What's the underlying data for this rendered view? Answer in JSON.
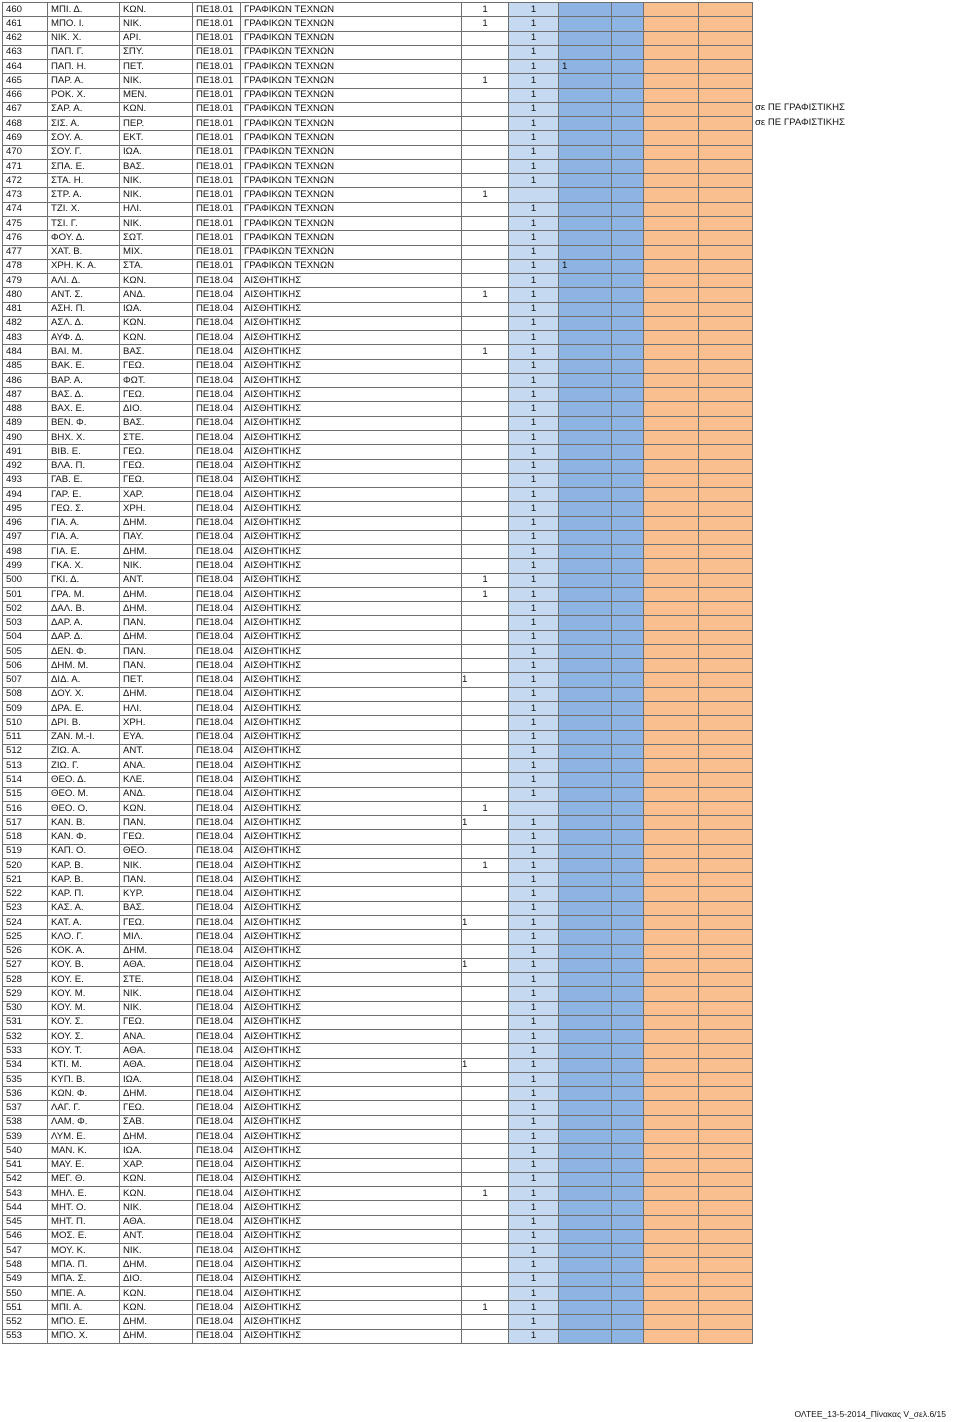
{
  "rows": [
    {
      "no": "460",
      "surname": "ΜΠΙ. Δ.",
      "father": "ΚΩΝ.",
      "code": "ΠΕ18.01",
      "spec": "ΓΡΑΦΙΚΩΝ ΤΕΧΝΩΝ",
      "a": "1",
      "b": "1"
    },
    {
      "no": "461",
      "surname": "ΜΠΟ. Ι.",
      "father": "ΝΙΚ.",
      "code": "ΠΕ18.01",
      "spec": "ΓΡΑΦΙΚΩΝ ΤΕΧΝΩΝ",
      "a": "1",
      "b": "1"
    },
    {
      "no": "462",
      "surname": "ΝΙΚ. Χ.",
      "father": "ΑΡΙ.",
      "code": "ΠΕ18.01",
      "spec": "ΓΡΑΦΙΚΩΝ ΤΕΧΝΩΝ",
      "a": "",
      "b": "1"
    },
    {
      "no": "463",
      "surname": "ΠΑΠ. Γ.",
      "father": "ΣΠΥ.",
      "code": "ΠΕ18.01",
      "spec": "ΓΡΑΦΙΚΩΝ ΤΕΧΝΩΝ",
      "a": "",
      "b": "1"
    },
    {
      "no": "464",
      "surname": "ΠΑΠ. Η.",
      "father": "ΠΕΤ.",
      "code": "ΠΕ18.01",
      "spec": "ΓΡΑΦΙΚΩΝ ΤΕΧΝΩΝ",
      "a": "",
      "b": "1",
      "c": "1"
    },
    {
      "no": "465",
      "surname": "ΠΑΡ. Α.",
      "father": "ΝΙΚ.",
      "code": "ΠΕ18.01",
      "spec": "ΓΡΑΦΙΚΩΝ ΤΕΧΝΩΝ",
      "a": "1",
      "b": "1"
    },
    {
      "no": "466",
      "surname": "ΡΟΚ. Χ.",
      "father": "ΜΕΝ.",
      "code": "ΠΕ18.01",
      "spec": "ΓΡΑΦΙΚΩΝ ΤΕΧΝΩΝ",
      "a": "",
      "b": "1"
    },
    {
      "no": "467",
      "surname": "ΣΑΡ. Α.",
      "father": "ΚΩΝ.",
      "code": "ΠΕ18.01",
      "spec": "ΓΡΑΦΙΚΩΝ ΤΕΧΝΩΝ",
      "a": "",
      "b": "1",
      "remark": "σε ΠΕ ΓΡΑΦΙΣΤΙΚΗΣ"
    },
    {
      "no": "468",
      "surname": "ΣΙΣ. Α.",
      "father": "ΠΕΡ.",
      "code": "ΠΕ18.01",
      "spec": "ΓΡΑΦΙΚΩΝ ΤΕΧΝΩΝ",
      "a": "",
      "b": "1",
      "remark": "σε ΠΕ ΓΡΑΦΙΣΤΙΚΗΣ"
    },
    {
      "no": "469",
      "surname": "ΣΟΥ. Α.",
      "father": "ΕΚΤ.",
      "code": "ΠΕ18.01",
      "spec": "ΓΡΑΦΙΚΩΝ ΤΕΧΝΩΝ",
      "a": "",
      "b": "1"
    },
    {
      "no": "470",
      "surname": "ΣΟΥ. Γ.",
      "father": "ΙΩΑ.",
      "code": "ΠΕ18.01",
      "spec": "ΓΡΑΦΙΚΩΝ ΤΕΧΝΩΝ",
      "a": "",
      "b": "1"
    },
    {
      "no": "471",
      "surname": "ΣΠΑ. Ε.",
      "father": "ΒΑΣ.",
      "code": "ΠΕ18.01",
      "spec": "ΓΡΑΦΙΚΩΝ ΤΕΧΝΩΝ",
      "a": "",
      "b": "1"
    },
    {
      "no": "472",
      "surname": "ΣΤΑ. Η.",
      "father": "ΝΙΚ.",
      "code": "ΠΕ18.01",
      "spec": "ΓΡΑΦΙΚΩΝ ΤΕΧΝΩΝ",
      "a": "",
      "b": "1"
    },
    {
      "no": "473",
      "surname": "ΣΤΡ. Α.",
      "father": "ΝΙΚ.",
      "code": "ΠΕ18.01",
      "spec": "ΓΡΑΦΙΚΩΝ ΤΕΧΝΩΝ",
      "a": "1",
      "b": ""
    },
    {
      "no": "474",
      "surname": "ΤΖΙ. Χ.",
      "father": "ΗΛΙ.",
      "code": "ΠΕ18.01",
      "spec": "ΓΡΑΦΙΚΩΝ ΤΕΧΝΩΝ",
      "a": "",
      "b": "1"
    },
    {
      "no": "475",
      "surname": "ΤΣΙ. Γ.",
      "father": "ΝΙΚ.",
      "code": "ΠΕ18.01",
      "spec": "ΓΡΑΦΙΚΩΝ ΤΕΧΝΩΝ",
      "a": "",
      "b": "1"
    },
    {
      "no": "476",
      "surname": "ΦΟΥ. Δ.",
      "father": "ΣΩΤ.",
      "code": "ΠΕ18.01",
      "spec": "ΓΡΑΦΙΚΩΝ ΤΕΧΝΩΝ",
      "a": "",
      "b": "1"
    },
    {
      "no": "477",
      "surname": "ΧΑΤ. Β.",
      "father": "ΜΙΧ.",
      "code": "ΠΕ18.01",
      "spec": "ΓΡΑΦΙΚΩΝ ΤΕΧΝΩΝ",
      "a": "",
      "b": "1"
    },
    {
      "no": "478",
      "surname": "ΧΡΗ. Κ. Α.",
      "father": "ΣΤΑ.",
      "code": "ΠΕ18.01",
      "spec": "ΓΡΑΦΙΚΩΝ ΤΕΧΝΩΝ",
      "a": "",
      "b": "1",
      "c": "1"
    },
    {
      "no": "479",
      "surname": "ΑΛΙ. Δ.",
      "father": "ΚΩΝ.",
      "code": "ΠΕ18.04",
      "spec": "ΑΙΣΘΗΤΙΚΗΣ",
      "a": "",
      "b": "1"
    },
    {
      "no": "480",
      "surname": "ΑΝΤ. Σ.",
      "father": "ΑΝΔ.",
      "code": "ΠΕ18.04",
      "spec": "ΑΙΣΘΗΤΙΚΗΣ",
      "a": "1",
      "b": "1"
    },
    {
      "no": "481",
      "surname": "ΑΣΗ. Π.",
      "father": "ΙΩΑ.",
      "code": "ΠΕ18.04",
      "spec": "ΑΙΣΘΗΤΙΚΗΣ",
      "a": "",
      "b": "1"
    },
    {
      "no": "482",
      "surname": "ΑΣΛ. Δ.",
      "father": "ΚΩΝ.",
      "code": "ΠΕ18.04",
      "spec": "ΑΙΣΘΗΤΙΚΗΣ",
      "a": "",
      "b": "1"
    },
    {
      "no": "483",
      "surname": "ΑΥΦ. Δ.",
      "father": "ΚΩΝ.",
      "code": "ΠΕ18.04",
      "spec": "ΑΙΣΘΗΤΙΚΗΣ",
      "a": "",
      "b": "1"
    },
    {
      "no": "484",
      "surname": "ΒΑΙ. Μ.",
      "father": "ΒΑΣ.",
      "code": "ΠΕ18.04",
      "spec": "ΑΙΣΘΗΤΙΚΗΣ",
      "a": "1",
      "b": "1"
    },
    {
      "no": "485",
      "surname": "ΒΑΚ. Ε.",
      "father": "ΓΕΩ.",
      "code": "ΠΕ18.04",
      "spec": "ΑΙΣΘΗΤΙΚΗΣ",
      "a": "",
      "b": "1"
    },
    {
      "no": "486",
      "surname": "ΒΑΡ. Α.",
      "father": "ΦΩΤ.",
      "code": "ΠΕ18.04",
      "spec": "ΑΙΣΘΗΤΙΚΗΣ",
      "a": "",
      "b": "1"
    },
    {
      "no": "487",
      "surname": "ΒΑΣ. Δ.",
      "father": "ΓΕΩ.",
      "code": "ΠΕ18.04",
      "spec": "ΑΙΣΘΗΤΙΚΗΣ",
      "a": "",
      "b": "1"
    },
    {
      "no": "488",
      "surname": "ΒΑΧ. Ε.",
      "father": "ΔΙΟ.",
      "code": "ΠΕ18.04",
      "spec": "ΑΙΣΘΗΤΙΚΗΣ",
      "a": "",
      "b": "1"
    },
    {
      "no": "489",
      "surname": "ΒΕΝ. Φ.",
      "father": "ΒΑΣ.",
      "code": "ΠΕ18.04",
      "spec": "ΑΙΣΘΗΤΙΚΗΣ",
      "a": "",
      "b": "1"
    },
    {
      "no": "490",
      "surname": "ΒΗΧ. Χ.",
      "father": "ΣΤΕ.",
      "code": "ΠΕ18.04",
      "spec": "ΑΙΣΘΗΤΙΚΗΣ",
      "a": "",
      "b": "1"
    },
    {
      "no": "491",
      "surname": "ΒΙΒ. Ε.",
      "father": "ΓΕΩ.",
      "code": "ΠΕ18.04",
      "spec": "ΑΙΣΘΗΤΙΚΗΣ",
      "a": "",
      "b": "1"
    },
    {
      "no": "492",
      "surname": "ΒΛΑ. Π.",
      "father": "ΓΕΩ.",
      "code": "ΠΕ18.04",
      "spec": "ΑΙΣΘΗΤΙΚΗΣ",
      "a": "",
      "b": "1"
    },
    {
      "no": "493",
      "surname": "ΓΑΒ. Ε.",
      "father": "ΓΕΩ.",
      "code": "ΠΕ18.04",
      "spec": "ΑΙΣΘΗΤΙΚΗΣ",
      "a": "",
      "b": "1"
    },
    {
      "no": "494",
      "surname": "ΓΑΡ. Ε.",
      "father": "ΧΑΡ.",
      "code": "ΠΕ18.04",
      "spec": "ΑΙΣΘΗΤΙΚΗΣ",
      "a": "",
      "b": "1"
    },
    {
      "no": "495",
      "surname": "ΓΕΩ. Σ.",
      "father": "ΧΡΗ.",
      "code": "ΠΕ18.04",
      "spec": "ΑΙΣΘΗΤΙΚΗΣ",
      "a": "",
      "b": "1"
    },
    {
      "no": "496",
      "surname": "ΓΙΑ. Α.",
      "father": "ΔΗΜ.",
      "code": "ΠΕ18.04",
      "spec": "ΑΙΣΘΗΤΙΚΗΣ",
      "a": "",
      "b": "1"
    },
    {
      "no": "497",
      "surname": "ΓΙΑ. Α.",
      "father": "ΠΑΥ.",
      "code": "ΠΕ18.04",
      "spec": "ΑΙΣΘΗΤΙΚΗΣ",
      "a": "",
      "b": "1"
    },
    {
      "no": "498",
      "surname": "ΓΙΑ. Ε.",
      "father": "ΔΗΜ.",
      "code": "ΠΕ18.04",
      "spec": "ΑΙΣΘΗΤΙΚΗΣ",
      "a": "",
      "b": "1"
    },
    {
      "no": "499",
      "surname": "ΓΚΑ. Χ.",
      "father": "ΝΙΚ.",
      "code": "ΠΕ18.04",
      "spec": "ΑΙΣΘΗΤΙΚΗΣ",
      "a": "",
      "b": "1"
    },
    {
      "no": "500",
      "surname": "ΓΚΙ. Δ.",
      "father": "ΑΝΤ.",
      "code": "ΠΕ18.04",
      "spec": "ΑΙΣΘΗΤΙΚΗΣ",
      "a": "1",
      "b": "1"
    },
    {
      "no": "501",
      "surname": "ΓΡΑ. Μ.",
      "father": "ΔΗΜ.",
      "code": "ΠΕ18.04",
      "spec": "ΑΙΣΘΗΤΙΚΗΣ",
      "a": "1",
      "b": "1"
    },
    {
      "no": "502",
      "surname": "ΔΑΛ. Β.",
      "father": "ΔΗΜ.",
      "code": "ΠΕ18.04",
      "spec": "ΑΙΣΘΗΤΙΚΗΣ",
      "a": "",
      "b": "1"
    },
    {
      "no": "503",
      "surname": "ΔΑΡ. Α.",
      "father": "ΠΑΝ.",
      "code": "ΠΕ18.04",
      "spec": "ΑΙΣΘΗΤΙΚΗΣ",
      "a": "",
      "b": "1"
    },
    {
      "no": "504",
      "surname": "ΔΑΡ. Δ.",
      "father": "ΔΗΜ.",
      "code": "ΠΕ18.04",
      "spec": "ΑΙΣΘΗΤΙΚΗΣ",
      "a": "",
      "b": "1"
    },
    {
      "no": "505",
      "surname": "ΔΕΝ. Φ.",
      "father": "ΠΑΝ.",
      "code": "ΠΕ18.04",
      "spec": "ΑΙΣΘΗΤΙΚΗΣ",
      "a": "",
      "b": "1"
    },
    {
      "no": "506",
      "surname": "ΔΗΜ. Μ.",
      "father": "ΠΑΝ.",
      "code": "ΠΕ18.04",
      "spec": "ΑΙΣΘΗΤΙΚΗΣ",
      "a": "",
      "b": "1"
    },
    {
      "no": "507",
      "surname": "ΔΙΔ. Α.",
      "father": "ΠΕΤ.",
      "code": "ΠΕ18.04",
      "spec": "ΑΙΣΘΗΤΙΚΗΣ",
      "a": "1",
      "b": "1",
      "a_shift": true
    },
    {
      "no": "508",
      "surname": "ΔΟΥ. Χ.",
      "father": "ΔΗΜ.",
      "code": "ΠΕ18.04",
      "spec": "ΑΙΣΘΗΤΙΚΗΣ",
      "a": "",
      "b": "1"
    },
    {
      "no": "509",
      "surname": "ΔΡΑ. Ε.",
      "father": "ΗΛΙ.",
      "code": "ΠΕ18.04",
      "spec": "ΑΙΣΘΗΤΙΚΗΣ",
      "a": "",
      "b": "1"
    },
    {
      "no": "510",
      "surname": "ΔΡΙ. Β.",
      "father": "ΧΡΗ.",
      "code": "ΠΕ18.04",
      "spec": "ΑΙΣΘΗΤΙΚΗΣ",
      "a": "",
      "b": "1"
    },
    {
      "no": "511",
      "surname": "ΖΑΝ. Μ.-Ι.",
      "father": "ΕΥΑ.",
      "code": "ΠΕ18.04",
      "spec": "ΑΙΣΘΗΤΙΚΗΣ",
      "a": "",
      "b": "1"
    },
    {
      "no": "512",
      "surname": "ΖΙΩ. Α.",
      "father": "ΑΝΤ.",
      "code": "ΠΕ18.04",
      "spec": "ΑΙΣΘΗΤΙΚΗΣ",
      "a": "",
      "b": "1"
    },
    {
      "no": "513",
      "surname": "ΖΙΩ. Γ.",
      "father": "ΑΝΑ.",
      "code": "ΠΕ18.04",
      "spec": "ΑΙΣΘΗΤΙΚΗΣ",
      "a": "",
      "b": "1"
    },
    {
      "no": "514",
      "surname": "ΘΕΟ. Δ.",
      "father": "ΚΛΕ.",
      "code": "ΠΕ18.04",
      "spec": "ΑΙΣΘΗΤΙΚΗΣ",
      "a": "",
      "b": "1"
    },
    {
      "no": "515",
      "surname": "ΘΕΟ. Μ.",
      "father": "ΑΝΔ.",
      "code": "ΠΕ18.04",
      "spec": "ΑΙΣΘΗΤΙΚΗΣ",
      "a": "",
      "b": "1"
    },
    {
      "no": "516",
      "surname": "ΘΕΟ. Ο.",
      "father": "ΚΩΝ.",
      "code": "ΠΕ18.04",
      "spec": "ΑΙΣΘΗΤΙΚΗΣ",
      "a": "1",
      "b": ""
    },
    {
      "no": "517",
      "surname": "ΚΑΝ. Β.",
      "father": "ΠΑΝ.",
      "code": "ΠΕ18.04",
      "spec": "ΑΙΣΘΗΤΙΚΗΣ",
      "a": "1",
      "b": "1",
      "a_shift": true
    },
    {
      "no": "518",
      "surname": "ΚΑΝ. Φ.",
      "father": "ΓΕΩ.",
      "code": "ΠΕ18.04",
      "spec": "ΑΙΣΘΗΤΙΚΗΣ",
      "a": "",
      "b": "1"
    },
    {
      "no": "519",
      "surname": "ΚΑΠ. Ο.",
      "father": "ΘΕΟ.",
      "code": "ΠΕ18.04",
      "spec": "ΑΙΣΘΗΤΙΚΗΣ",
      "a": "",
      "b": "1"
    },
    {
      "no": "520",
      "surname": "ΚΑΡ. Β.",
      "father": "ΝΙΚ.",
      "code": "ΠΕ18.04",
      "spec": "ΑΙΣΘΗΤΙΚΗΣ",
      "a": "1",
      "b": "1"
    },
    {
      "no": "521",
      "surname": "ΚΑΡ. Β.",
      "father": "ΠΑΝ.",
      "code": "ΠΕ18.04",
      "spec": "ΑΙΣΘΗΤΙΚΗΣ",
      "a": "",
      "b": "1"
    },
    {
      "no": "522",
      "surname": "ΚΑΡ. Π.",
      "father": "ΚΥΡ.",
      "code": "ΠΕ18.04",
      "spec": "ΑΙΣΘΗΤΙΚΗΣ",
      "a": "",
      "b": "1"
    },
    {
      "no": "523",
      "surname": "ΚΑΣ. Α.",
      "father": "ΒΑΣ.",
      "code": "ΠΕ18.04",
      "spec": "ΑΙΣΘΗΤΙΚΗΣ",
      "a": "",
      "b": "1"
    },
    {
      "no": "524",
      "surname": "ΚΑΤ. Α.",
      "father": "ΓΕΩ.",
      "code": "ΠΕ18.04",
      "spec": "ΑΙΣΘΗΤΙΚΗΣ",
      "a": "1",
      "b": "1",
      "a_shift": true
    },
    {
      "no": "525",
      "surname": "ΚΛΟ. Γ.",
      "father": "ΜΙΛ.",
      "code": "ΠΕ18.04",
      "spec": "ΑΙΣΘΗΤΙΚΗΣ",
      "a": "",
      "b": "1"
    },
    {
      "no": "526",
      "surname": "ΚΟΚ. Α.",
      "father": "ΔΗΜ.",
      "code": "ΠΕ18.04",
      "spec": "ΑΙΣΘΗΤΙΚΗΣ",
      "a": "",
      "b": "1"
    },
    {
      "no": "527",
      "surname": "ΚΟΥ. Β.",
      "father": "ΑΘΑ.",
      "code": "ΠΕ18.04",
      "spec": "ΑΙΣΘΗΤΙΚΗΣ",
      "a": "1",
      "b": "1",
      "a_shift": true
    },
    {
      "no": "528",
      "surname": "ΚΟΥ. Ε.",
      "father": "ΣΤΕ.",
      "code": "ΠΕ18.04",
      "spec": "ΑΙΣΘΗΤΙΚΗΣ",
      "a": "",
      "b": "1"
    },
    {
      "no": "529",
      "surname": "ΚΟΥ. Μ.",
      "father": "ΝΙΚ.",
      "code": "ΠΕ18.04",
      "spec": "ΑΙΣΘΗΤΙΚΗΣ",
      "a": "",
      "b": "1"
    },
    {
      "no": "530",
      "surname": "ΚΟΥ. Μ.",
      "father": "ΝΙΚ.",
      "code": "ΠΕ18.04",
      "spec": "ΑΙΣΘΗΤΙΚΗΣ",
      "a": "",
      "b": "1"
    },
    {
      "no": "531",
      "surname": "ΚΟΥ. Σ.",
      "father": "ΓΕΩ.",
      "code": "ΠΕ18.04",
      "spec": "ΑΙΣΘΗΤΙΚΗΣ",
      "a": "",
      "b": "1"
    },
    {
      "no": "532",
      "surname": "ΚΟΥ. Σ.",
      "father": "ΑΝΑ.",
      "code": "ΠΕ18.04",
      "spec": "ΑΙΣΘΗΤΙΚΗΣ",
      "a": "",
      "b": "1"
    },
    {
      "no": "533",
      "surname": "ΚΟΥ. Τ.",
      "father": "ΑΘΑ.",
      "code": "ΠΕ18.04",
      "spec": "ΑΙΣΘΗΤΙΚΗΣ",
      "a": "",
      "b": "1"
    },
    {
      "no": "534",
      "surname": "ΚΤΙ. Μ.",
      "father": "ΑΘΑ.",
      "code": "ΠΕ18.04",
      "spec": "ΑΙΣΘΗΤΙΚΗΣ",
      "a": "1",
      "b": "1",
      "a_shift": true
    },
    {
      "no": "535",
      "surname": "ΚΥΠ. Β.",
      "father": "ΙΩΑ.",
      "code": "ΠΕ18.04",
      "spec": "ΑΙΣΘΗΤΙΚΗΣ",
      "a": "",
      "b": "1"
    },
    {
      "no": "536",
      "surname": "ΚΩΝ. Φ.",
      "father": "ΔΗΜ.",
      "code": "ΠΕ18.04",
      "spec": "ΑΙΣΘΗΤΙΚΗΣ",
      "a": "",
      "b": "1"
    },
    {
      "no": "537",
      "surname": "ΛΑΓ. Γ.",
      "father": "ΓΕΩ.",
      "code": "ΠΕ18.04",
      "spec": "ΑΙΣΘΗΤΙΚΗΣ",
      "a": "",
      "b": "1"
    },
    {
      "no": "538",
      "surname": "ΛΑΜ. Φ.",
      "father": "ΣΑΒ.",
      "code": "ΠΕ18.04",
      "spec": "ΑΙΣΘΗΤΙΚΗΣ",
      "a": "",
      "b": "1"
    },
    {
      "no": "539",
      "surname": "ΛΥΜ. Ε.",
      "father": "ΔΗΜ.",
      "code": "ΠΕ18.04",
      "spec": "ΑΙΣΘΗΤΙΚΗΣ",
      "a": "",
      "b": "1"
    },
    {
      "no": "540",
      "surname": "ΜΑΝ. Κ.",
      "father": "ΙΩΑ.",
      "code": "ΠΕ18.04",
      "spec": "ΑΙΣΘΗΤΙΚΗΣ",
      "a": "",
      "b": "1"
    },
    {
      "no": "541",
      "surname": "ΜΑΥ. Ε.",
      "father": "ΧΑΡ.",
      "code": "ΠΕ18.04",
      "spec": "ΑΙΣΘΗΤΙΚΗΣ",
      "a": "",
      "b": "1"
    },
    {
      "no": "542",
      "surname": "ΜΕΓ. Θ.",
      "father": "ΚΩΝ.",
      "code": "ΠΕ18.04",
      "spec": "ΑΙΣΘΗΤΙΚΗΣ",
      "a": "",
      "b": "1"
    },
    {
      "no": "543",
      "surname": "ΜΗΛ. Ε.",
      "father": "ΚΩΝ.",
      "code": "ΠΕ18.04",
      "spec": "ΑΙΣΘΗΤΙΚΗΣ",
      "a": "1",
      "b": "1"
    },
    {
      "no": "544",
      "surname": "ΜΗΤ. Ο.",
      "father": "ΝΙΚ.",
      "code": "ΠΕ18.04",
      "spec": "ΑΙΣΘΗΤΙΚΗΣ",
      "a": "",
      "b": "1"
    },
    {
      "no": "545",
      "surname": "ΜΗΤ. Π.",
      "father": "ΑΘΑ.",
      "code": "ΠΕ18.04",
      "spec": "ΑΙΣΘΗΤΙΚΗΣ",
      "a": "",
      "b": "1"
    },
    {
      "no": "546",
      "surname": "ΜΟΣ. Ε.",
      "father": "ΑΝΤ.",
      "code": "ΠΕ18.04",
      "spec": "ΑΙΣΘΗΤΙΚΗΣ",
      "a": "",
      "b": "1"
    },
    {
      "no": "547",
      "surname": "ΜΟΥ. Κ.",
      "father": "ΝΙΚ.",
      "code": "ΠΕ18.04",
      "spec": "ΑΙΣΘΗΤΙΚΗΣ",
      "a": "",
      "b": "1"
    },
    {
      "no": "548",
      "surname": "ΜΠΑ. Π.",
      "father": "ΔΗΜ.",
      "code": "ΠΕ18.04",
      "spec": "ΑΙΣΘΗΤΙΚΗΣ",
      "a": "",
      "b": "1"
    },
    {
      "no": "549",
      "surname": "ΜΠΑ. Σ.",
      "father": "ΔΙΟ.",
      "code": "ΠΕ18.04",
      "spec": "ΑΙΣΘΗΤΙΚΗΣ",
      "a": "",
      "b": "1"
    },
    {
      "no": "550",
      "surname": "ΜΠΕ. Α.",
      "father": "ΚΩΝ.",
      "code": "ΠΕ18.04",
      "spec": "ΑΙΣΘΗΤΙΚΗΣ",
      "a": "",
      "b": "1"
    },
    {
      "no": "551",
      "surname": "ΜΠΙ. Α.",
      "father": "ΚΩΝ.",
      "code": "ΠΕ18.04",
      "spec": "ΑΙΣΘΗΤΙΚΗΣ",
      "a": "1",
      "b": "1"
    },
    {
      "no": "552",
      "surname": "ΜΠΟ. Ε.",
      "father": "ΔΗΜ.",
      "code": "ΠΕ18.04",
      "spec": "ΑΙΣΘΗΤΙΚΗΣ",
      "a": "",
      "b": "1"
    },
    {
      "no": "553",
      "surname": "ΜΠΟ. Χ.",
      "father": "ΔΗΜ.",
      "code": "ΠΕ18.04",
      "spec": "ΑΙΣΘΗΤΙΚΗΣ",
      "a": "",
      "b": "1"
    }
  ],
  "footer": "ΟΛΤΕΕ_13-5-2014_Πίνακας V_σελ.6/15",
  "colors": {
    "blue_light": "#c5d9f1",
    "blue_mid": "#8db4e2",
    "orange": "#fabf8f"
  }
}
